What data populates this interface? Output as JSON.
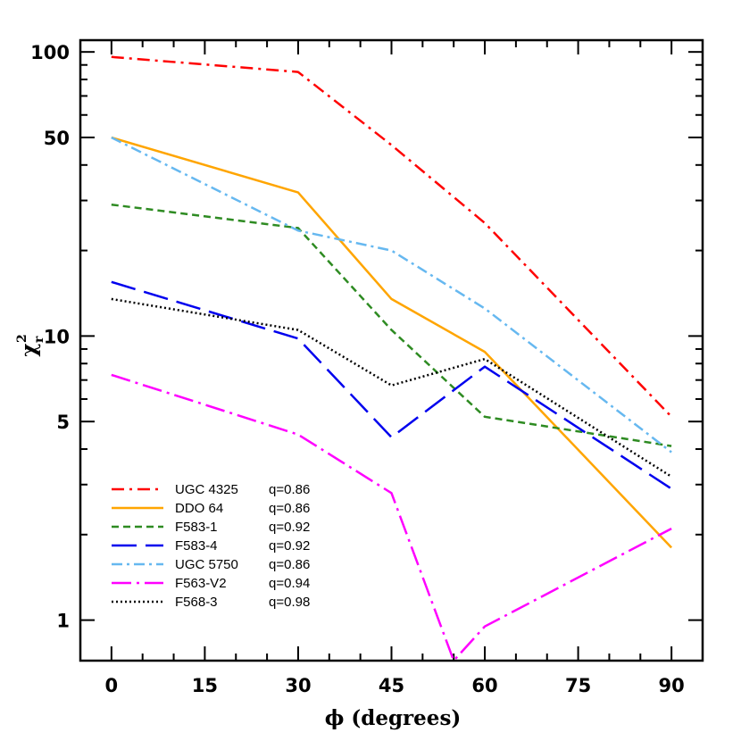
{
  "chart_data": {
    "type": "line",
    "title": "",
    "xlabel": "ϕ (degrees)",
    "ylabel": {
      "base": "χ",
      "sup": "2",
      "sub": "r"
    },
    "xlim": [
      -5,
      95
    ],
    "ylim": [
      0.72,
      110
    ],
    "yscale": "log",
    "xticks": [
      0,
      15,
      30,
      45,
      60,
      75,
      90
    ],
    "xtick_labels": [
      "0",
      "15",
      "30",
      "45",
      "60",
      "75",
      "90"
    ],
    "yticks": [
      1,
      5,
      10,
      50,
      100
    ],
    "ytick_labels": [
      "1",
      "5",
      "10",
      "50",
      "100"
    ],
    "legend_position": "bottom-left",
    "series": [
      {
        "name": "UGC 4325",
        "q": "q=0.86",
        "color": "#ff0000",
        "dash": "14,6,3,6",
        "width": 2.5,
        "x": [
          0,
          30,
          45,
          60,
          90
        ],
        "y": [
          96,
          85,
          47,
          25,
          5.2
        ]
      },
      {
        "name": "DDO 64",
        "q": "q=0.86",
        "color": "#ffa500",
        "dash": "",
        "width": 2.5,
        "x": [
          0,
          30,
          45,
          60,
          90
        ],
        "y": [
          50,
          32,
          13.5,
          8.8,
          1.8
        ]
      },
      {
        "name": "F583-1",
        "q": "q=0.92",
        "color": "#2e8b22",
        "dash": "8,5",
        "width": 2.5,
        "x": [
          0,
          30,
          45,
          60,
          90
        ],
        "y": [
          29,
          24,
          10.5,
          5.2,
          4.1
        ]
      },
      {
        "name": "F583-4",
        "q": "q=0.92",
        "color": "#0000ee",
        "dash": "28,10",
        "width": 2.5,
        "x": [
          0,
          30,
          45,
          60,
          90
        ],
        "y": [
          15.5,
          9.8,
          4.4,
          7.8,
          2.9
        ]
      },
      {
        "name": "UGC 5750",
        "q": "q=0.86",
        "color": "#66b8f0",
        "dash": "12,5,3,5",
        "width": 2.5,
        "x": [
          0,
          30,
          45,
          60,
          90
        ],
        "y": [
          50,
          23.5,
          20,
          12.5,
          3.9
        ]
      },
      {
        "name": "F563-V2",
        "q": "q=0.94",
        "color": "#ff00ff",
        "dash": "22,6,3,6",
        "width": 2.5,
        "x": [
          0,
          30,
          45,
          55,
          60,
          90
        ],
        "y": [
          7.3,
          4.5,
          2.8,
          0.72,
          0.95,
          2.1
        ]
      },
      {
        "name": "F568-3",
        "q": "q=0.98",
        "color": "#000000",
        "dash": "2,3",
        "width": 2.5,
        "x": [
          0,
          30,
          45,
          60,
          90
        ],
        "y": [
          13.5,
          10.5,
          6.7,
          8.3,
          3.2
        ]
      }
    ]
  }
}
